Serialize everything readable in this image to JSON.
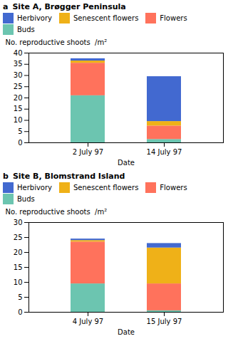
{
  "chart_data": [
    {
      "type": "bar",
      "stacked": true,
      "title": "Site A, Brøgger Peninsula",
      "annotations": [
        "a"
      ],
      "categories": [
        "2 July 97",
        "14 July 97"
      ],
      "series": [
        {
          "name": "Buds",
          "values": [
            21.0,
            1.5
          ]
        },
        {
          "name": "Flowers",
          "values": [
            14.5,
            6.0
          ]
        },
        {
          "name": "Senescent flowers",
          "values": [
            1.0,
            2.0
          ]
        },
        {
          "name": "Herbivory",
          "values": [
            1.0,
            20.0
          ]
        }
      ],
      "xlabel": "Date",
      "ylabel": "No. reproductive shoots  /m²",
      "ylim": [
        0,
        40
      ],
      "yticks": [
        0,
        5,
        10,
        15,
        20,
        25,
        30,
        35,
        40
      ],
      "legend": "top"
    },
    {
      "type": "bar",
      "stacked": true,
      "title": "Site B, Blomstrand Island",
      "annotations": [
        "b"
      ],
      "categories": [
        "4 July 97",
        "15 July 97"
      ],
      "series": [
        {
          "name": "Buds",
          "values": [
            9.5,
            0.5
          ]
        },
        {
          "name": "Flowers",
          "values": [
            14.0,
            9.0
          ]
        },
        {
          "name": "Senescent flowers",
          "values": [
            0.5,
            12.0
          ]
        },
        {
          "name": "Herbivory",
          "values": [
            0.5,
            1.5
          ]
        }
      ],
      "xlabel": "Date",
      "ylabel": "No. reproductive shoots  /m²",
      "ylim": [
        0,
        30
      ],
      "yticks": [
        0,
        5,
        10,
        15,
        20,
        25,
        30
      ],
      "legend": "top"
    }
  ]
}
